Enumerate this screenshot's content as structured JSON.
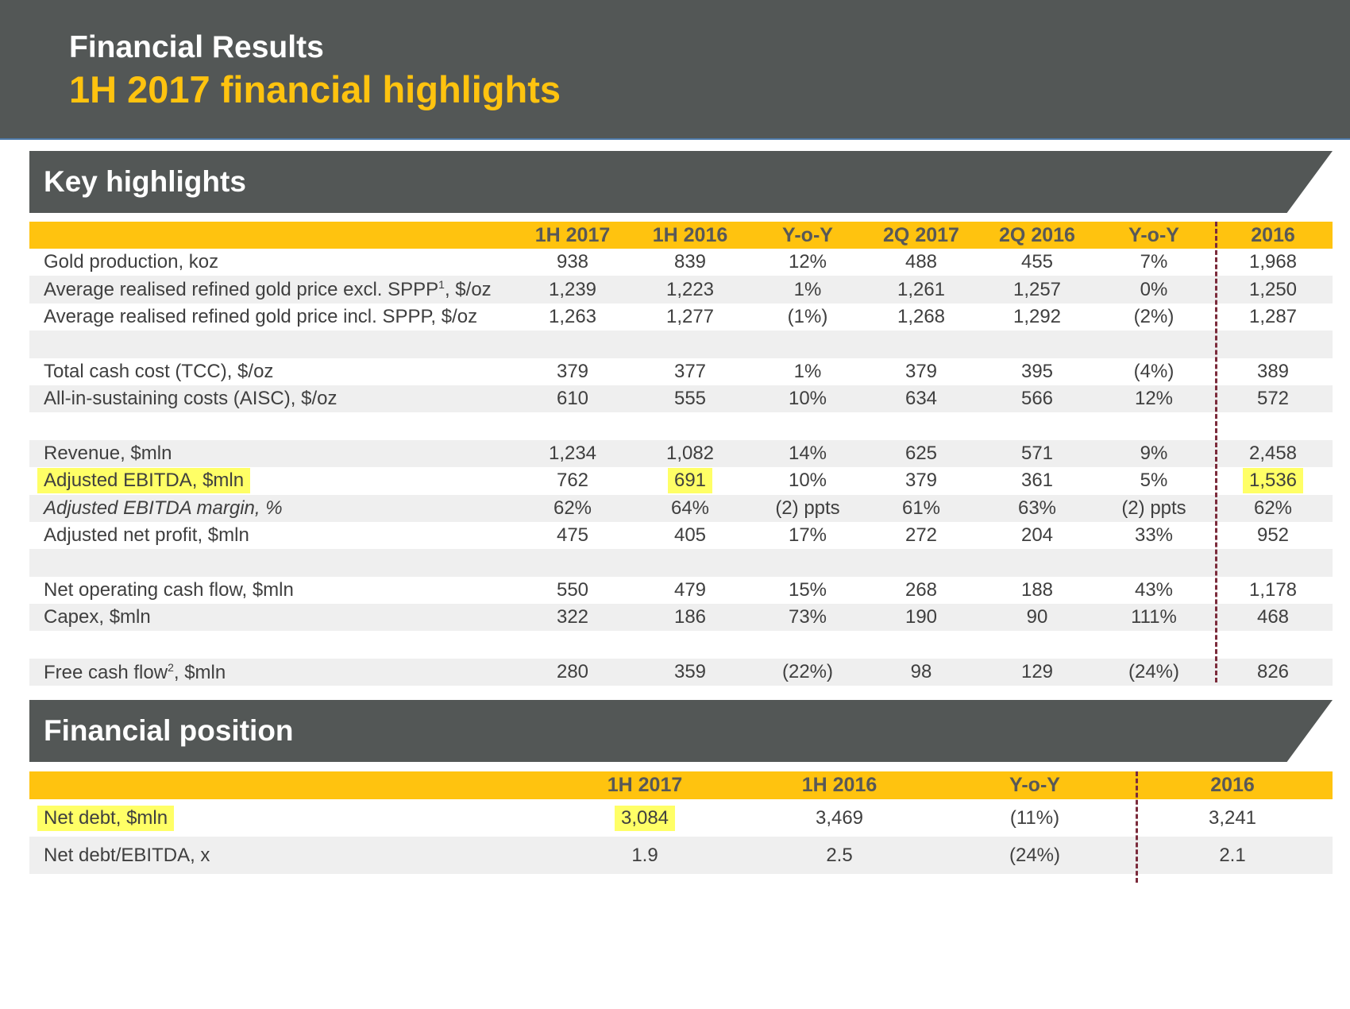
{
  "header": {
    "kicker": "Financial Results",
    "title": "1H 2017 financial highlights"
  },
  "colors": {
    "accent": "#ffc30f",
    "dark": "#535756",
    "highlight": "#ffff66",
    "divider": "#7b2b3b"
  },
  "key": {
    "title": "Key highlights",
    "columns": [
      "1H 2017",
      "1H 2016",
      "Y-o-Y",
      "2Q 2017",
      "2Q 2016",
      "Y-o-Y",
      "2016"
    ],
    "rows": [
      {
        "label": "Gold production, koz",
        "values": [
          "938",
          "839",
          "12%",
          "488",
          "455",
          "7%",
          "1,968"
        ]
      },
      {
        "label": "Average realised refined gold price excl. SPPP",
        "sup": "1",
        "label_suffix": ", $/oz",
        "values": [
          "1,239",
          "1,223",
          "1%",
          "1,261",
          "1,257",
          "0%",
          "1,250"
        ]
      },
      {
        "label": "Average realised refined gold price incl. SPPP, $/oz",
        "values": [
          "1,263",
          "1,277",
          "(1%)",
          "1,268",
          "1,292",
          "(2%)",
          "1,287"
        ]
      },
      {
        "label": "Total cash cost (TCC), $/oz",
        "values": [
          "379",
          "377",
          "1%",
          "379",
          "395",
          "(4%)",
          "389"
        ]
      },
      {
        "label": "All-in-sustaining costs (AISC), $/oz",
        "values": [
          "610",
          "555",
          "10%",
          "634",
          "566",
          "12%",
          "572"
        ]
      },
      {
        "label": "Revenue, $mln",
        "values": [
          "1,234",
          "1,082",
          "14%",
          "625",
          "571",
          "9%",
          "2,458"
        ]
      },
      {
        "label": "Adjusted EBITDA, $mln",
        "values": [
          "762",
          "691",
          "10%",
          "379",
          "361",
          "5%",
          "1,536"
        ]
      },
      {
        "label": "Adjusted EBITDA margin, %",
        "values": [
          "62%",
          "64%",
          "(2) ppts",
          "61%",
          "63%",
          "(2) ppts",
          "62%"
        ]
      },
      {
        "label": "Adjusted net profit, $mln",
        "values": [
          "475",
          "405",
          "17%",
          "272",
          "204",
          "33%",
          "952"
        ]
      },
      {
        "label": "Net operating cash flow, $mln",
        "values": [
          "550",
          "479",
          "15%",
          "268",
          "188",
          "43%",
          "1,178"
        ]
      },
      {
        "label": "Capex, $mln",
        "values": [
          "322",
          "186",
          "73%",
          "190",
          "90",
          "111%",
          "468"
        ]
      },
      {
        "label": "Free cash flow",
        "sup": "2",
        "label_suffix": ", $mln",
        "values": [
          "280",
          "359",
          "(22%)",
          "98",
          "129",
          "(24%)",
          "826"
        ]
      }
    ]
  },
  "financial_position": {
    "title": "Financial position",
    "columns": [
      "1H 2017",
      "1H 2016",
      "Y-o-Y",
      "2016"
    ],
    "rows": [
      {
        "label": "Net debt, $mln",
        "values": [
          "3,084",
          "3,469",
          "(11%)",
          "3,241"
        ]
      },
      {
        "label": "Net debt/EBITDA, x",
        "values": [
          "1.9",
          "2.5",
          "(24%)",
          "2.1"
        ]
      }
    ]
  }
}
